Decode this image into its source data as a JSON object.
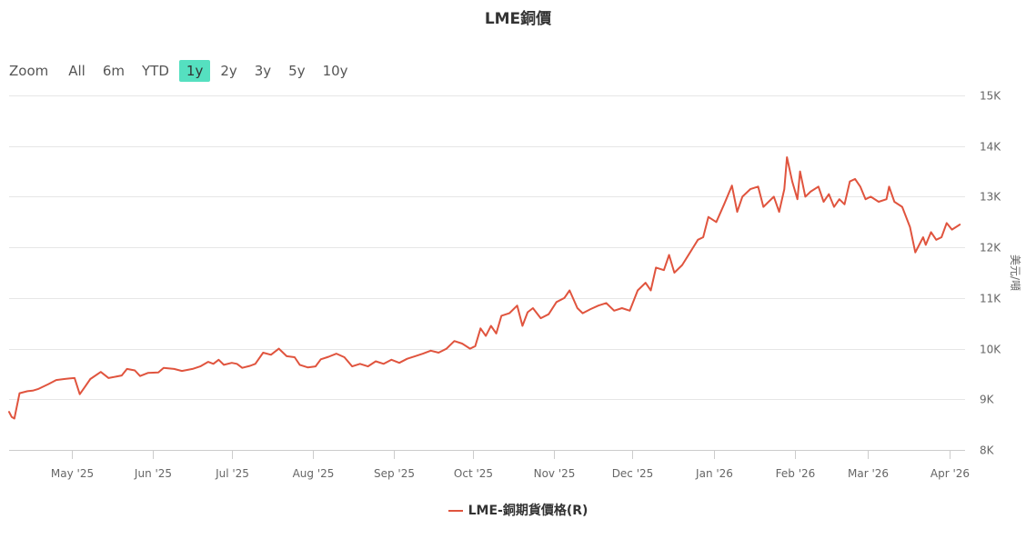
{
  "title": "LME銅價",
  "range_selector": {
    "zoom_label": "Zoom",
    "buttons": [
      {
        "label": "All",
        "active": false
      },
      {
        "label": "6m",
        "active": false
      },
      {
        "label": "YTD",
        "active": false
      },
      {
        "label": "1y",
        "active": true
      },
      {
        "label": "2y",
        "active": false
      },
      {
        "label": "3y",
        "active": false
      },
      {
        "label": "5y",
        "active": false
      },
      {
        "label": "10y",
        "active": false
      }
    ]
  },
  "legend": {
    "label": "LME-銅期貨價格(R)",
    "color": "#e0543e"
  },
  "chart_data": {
    "type": "line",
    "title": "LME銅價",
    "ylabel": "美元/噸",
    "ylim": [
      8000,
      15000
    ],
    "y_ticks": [
      8000,
      9000,
      10000,
      11000,
      12000,
      13000,
      14000,
      15000
    ],
    "y_tick_labels": [
      "8K",
      "9K",
      "10K",
      "11K",
      "12K",
      "13K",
      "14K",
      "15K"
    ],
    "y_axis_side": "right",
    "grid": true,
    "x_range": [
      "2025-04-07",
      "2026-04-07"
    ],
    "x_tick_dates": [
      "2025-05-01",
      "2025-06-01",
      "2025-07-01",
      "2025-08-01",
      "2025-09-01",
      "2025-10-01",
      "2025-11-01",
      "2025-12-01",
      "2026-01-01",
      "2026-02-01",
      "2026-03-01",
      "2026-04-01"
    ],
    "x_tick_labels": [
      "May '25",
      "Jun '25",
      "Jul '25",
      "Aug '25",
      "Sep '25",
      "Oct '25",
      "Nov '25",
      "Dec '25",
      "Jan '26",
      "Feb '26",
      "Mar '26",
      "Apr '26"
    ],
    "legend_position": "bottom-center",
    "series": [
      {
        "name": "LME-銅期貨價格(R)",
        "color": "#e0543e",
        "points": [
          [
            "2025-04-07",
            8750
          ],
          [
            "2025-04-08",
            8650
          ],
          [
            "2025-04-09",
            8620
          ],
          [
            "2025-04-11",
            9120
          ],
          [
            "2025-04-14",
            9160
          ],
          [
            "2025-04-16",
            9170
          ],
          [
            "2025-04-18",
            9200
          ],
          [
            "2025-04-22",
            9300
          ],
          [
            "2025-04-25",
            9380
          ],
          [
            "2025-04-28",
            9400
          ],
          [
            "2025-04-30",
            9410
          ],
          [
            "2025-05-02",
            9420
          ],
          [
            "2025-05-04",
            9100
          ],
          [
            "2025-05-06",
            9250
          ],
          [
            "2025-05-08",
            9400
          ],
          [
            "2025-05-12",
            9540
          ],
          [
            "2025-05-15",
            9420
          ],
          [
            "2025-05-20",
            9470
          ],
          [
            "2025-05-22",
            9600
          ],
          [
            "2025-05-25",
            9570
          ],
          [
            "2025-05-27",
            9460
          ],
          [
            "2025-05-30",
            9520
          ],
          [
            "2025-06-03",
            9530
          ],
          [
            "2025-06-05",
            9620
          ],
          [
            "2025-06-09",
            9600
          ],
          [
            "2025-06-12",
            9560
          ],
          [
            "2025-06-16",
            9600
          ],
          [
            "2025-06-19",
            9650
          ],
          [
            "2025-06-22",
            9740
          ],
          [
            "2025-06-24",
            9700
          ],
          [
            "2025-06-26",
            9780
          ],
          [
            "2025-06-28",
            9680
          ],
          [
            "2025-07-01",
            9720
          ],
          [
            "2025-07-03",
            9700
          ],
          [
            "2025-07-05",
            9620
          ],
          [
            "2025-07-08",
            9660
          ],
          [
            "2025-07-10",
            9700
          ],
          [
            "2025-07-13",
            9920
          ],
          [
            "2025-07-16",
            9880
          ],
          [
            "2025-07-19",
            10000
          ],
          [
            "2025-07-22",
            9850
          ],
          [
            "2025-07-25",
            9830
          ],
          [
            "2025-07-27",
            9680
          ],
          [
            "2025-07-30",
            9630
          ],
          [
            "2025-08-02",
            9650
          ],
          [
            "2025-08-04",
            9790
          ],
          [
            "2025-08-07",
            9840
          ],
          [
            "2025-08-10",
            9900
          ],
          [
            "2025-08-13",
            9830
          ],
          [
            "2025-08-16",
            9650
          ],
          [
            "2025-08-19",
            9700
          ],
          [
            "2025-08-22",
            9650
          ],
          [
            "2025-08-25",
            9750
          ],
          [
            "2025-08-28",
            9700
          ],
          [
            "2025-08-31",
            9780
          ],
          [
            "2025-09-03",
            9720
          ],
          [
            "2025-09-06",
            9800
          ],
          [
            "2025-09-09",
            9850
          ],
          [
            "2025-09-12",
            9900
          ],
          [
            "2025-09-15",
            9960
          ],
          [
            "2025-09-18",
            9920
          ],
          [
            "2025-09-21",
            10000
          ],
          [
            "2025-09-24",
            10150
          ],
          [
            "2025-09-27",
            10100
          ],
          [
            "2025-09-30",
            10000
          ],
          [
            "2025-10-02",
            10050
          ],
          [
            "2025-10-04",
            10400
          ],
          [
            "2025-10-06",
            10250
          ],
          [
            "2025-10-08",
            10450
          ],
          [
            "2025-10-10",
            10300
          ],
          [
            "2025-10-12",
            10650
          ],
          [
            "2025-10-15",
            10700
          ],
          [
            "2025-10-18",
            10850
          ],
          [
            "2025-10-20",
            10450
          ],
          [
            "2025-10-22",
            10720
          ],
          [
            "2025-10-24",
            10800
          ],
          [
            "2025-10-27",
            10600
          ],
          [
            "2025-10-30",
            10680
          ],
          [
            "2025-11-02",
            10920
          ],
          [
            "2025-11-05",
            11000
          ],
          [
            "2025-11-07",
            11150
          ],
          [
            "2025-11-10",
            10800
          ],
          [
            "2025-11-12",
            10700
          ],
          [
            "2025-11-15",
            10780
          ],
          [
            "2025-11-18",
            10850
          ],
          [
            "2025-11-21",
            10900
          ],
          [
            "2025-11-24",
            10750
          ],
          [
            "2025-11-27",
            10800
          ],
          [
            "2025-11-30",
            10750
          ],
          [
            "2025-12-03",
            11150
          ],
          [
            "2025-12-06",
            11300
          ],
          [
            "2025-12-08",
            11150
          ],
          [
            "2025-12-10",
            11600
          ],
          [
            "2025-12-13",
            11550
          ],
          [
            "2025-12-15",
            11850
          ],
          [
            "2025-12-17",
            11500
          ],
          [
            "2025-12-20",
            11650
          ],
          [
            "2025-12-23",
            11900
          ],
          [
            "2025-12-26",
            12150
          ],
          [
            "2025-12-28",
            12200
          ],
          [
            "2025-12-30",
            12600
          ],
          [
            "2026-01-02",
            12500
          ],
          [
            "2026-01-05",
            12850
          ],
          [
            "2026-01-08",
            13220
          ],
          [
            "2026-01-10",
            12700
          ],
          [
            "2026-01-12",
            13000
          ],
          [
            "2026-01-15",
            13150
          ],
          [
            "2026-01-18",
            13200
          ],
          [
            "2026-01-20",
            12800
          ],
          [
            "2026-01-22",
            12900
          ],
          [
            "2026-01-24",
            13000
          ],
          [
            "2026-01-26",
            12700
          ],
          [
            "2026-01-28",
            13150
          ],
          [
            "2026-01-29",
            13780
          ],
          [
            "2026-01-31",
            13300
          ],
          [
            "2026-02-02",
            12950
          ],
          [
            "2026-02-03",
            13500
          ],
          [
            "2026-02-05",
            13000
          ],
          [
            "2026-02-07",
            13100
          ],
          [
            "2026-02-10",
            13200
          ],
          [
            "2026-02-12",
            12900
          ],
          [
            "2026-02-14",
            13050
          ],
          [
            "2026-02-16",
            12800
          ],
          [
            "2026-02-18",
            12950
          ],
          [
            "2026-02-20",
            12850
          ],
          [
            "2026-02-22",
            13300
          ],
          [
            "2026-02-24",
            13350
          ],
          [
            "2026-02-26",
            13200
          ],
          [
            "2026-02-28",
            12950
          ],
          [
            "2026-03-02",
            13000
          ],
          [
            "2026-03-05",
            12900
          ],
          [
            "2026-03-08",
            12950
          ],
          [
            "2026-03-09",
            13200
          ],
          [
            "2026-03-11",
            12900
          ],
          [
            "2026-03-14",
            12800
          ],
          [
            "2026-03-17",
            12400
          ],
          [
            "2026-03-19",
            11900
          ],
          [
            "2026-03-22",
            12200
          ],
          [
            "2026-03-23",
            12050
          ],
          [
            "2026-03-25",
            12300
          ],
          [
            "2026-03-27",
            12150
          ],
          [
            "2026-03-29",
            12200
          ],
          [
            "2026-03-31",
            12480
          ],
          [
            "2026-04-02",
            12350
          ],
          [
            "2026-04-05",
            12450
          ]
        ]
      }
    ]
  }
}
